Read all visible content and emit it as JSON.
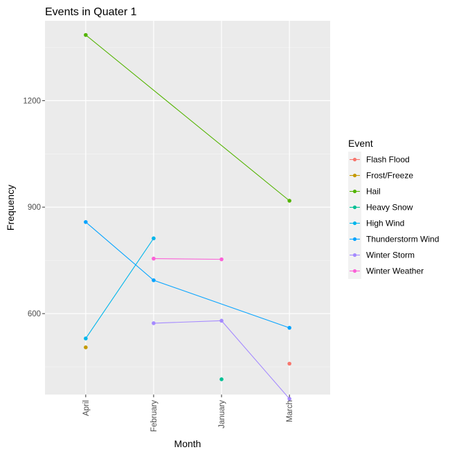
{
  "chart_data": {
    "type": "line",
    "title": "Events in Quater 1",
    "xlabel": "Month",
    "ylabel": "Frequency",
    "categories": [
      "April",
      "February",
      "January",
      "March"
    ],
    "yticks": [
      600,
      900,
      1200
    ],
    "ylim": [
      372,
      1425
    ],
    "grid": true,
    "legend_title": "Event",
    "legend_position": "right",
    "series": [
      {
        "name": "Flash Flood",
        "color": "#F8766D",
        "points": [
          {
            "x": "March",
            "y": 459
          }
        ]
      },
      {
        "name": "Frost/Freeze",
        "color": "#C49A00",
        "points": [
          {
            "x": "April",
            "y": 505
          }
        ]
      },
      {
        "name": "Hail",
        "color": "#53B400",
        "points": [
          {
            "x": "April",
            "y": 1385
          },
          {
            "x": "March",
            "y": 918
          }
        ]
      },
      {
        "name": "Heavy Snow",
        "color": "#00C094",
        "points": [
          {
            "x": "January",
            "y": 415
          }
        ]
      },
      {
        "name": "High Wind",
        "color": "#00B6EB",
        "points": [
          {
            "x": "April",
            "y": 530
          },
          {
            "x": "February",
            "y": 812
          }
        ]
      },
      {
        "name": "Thunderstorm Wind",
        "color": "#06A4FF",
        "points": [
          {
            "x": "April",
            "y": 858
          },
          {
            "x": "February",
            "y": 694
          },
          {
            "x": "March",
            "y": 560
          }
        ]
      },
      {
        "name": "Winter Storm",
        "color": "#A58AFF",
        "points": [
          {
            "x": "February",
            "y": 573
          },
          {
            "x": "January",
            "y": 580
          },
          {
            "x": "March",
            "y": 360
          }
        ]
      },
      {
        "name": "Winter Weather",
        "color": "#FB61D7",
        "points": [
          {
            "x": "February",
            "y": 755
          },
          {
            "x": "January",
            "y": 753
          }
        ]
      }
    ]
  }
}
